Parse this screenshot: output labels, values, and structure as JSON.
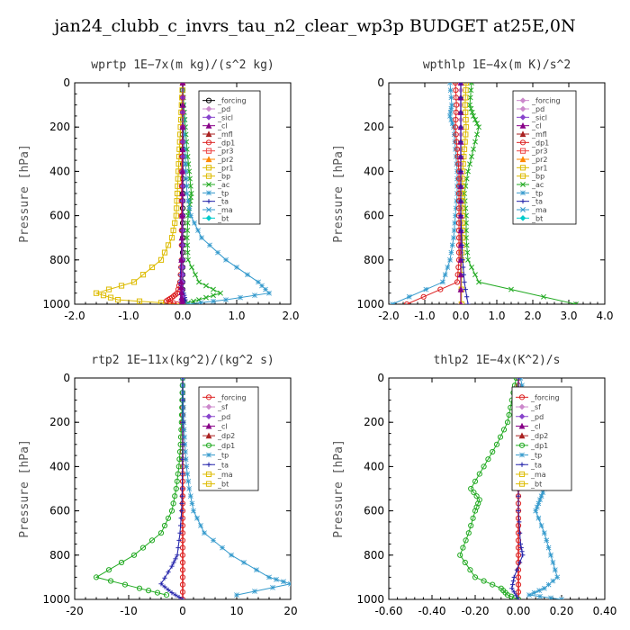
{
  "figure": {
    "title": "jan24_clubb_c_invrs_tau_n2_clear_wp3p  BUDGET at25E,0N"
  },
  "chart_data": [
    {
      "type": "line",
      "title": "wprtp   1E−7x(m kg)/(s^2 kg)",
      "ylabel": "Pressure [hPa]",
      "xlim": [
        -2.0,
        2.0
      ],
      "xticks": [
        "-2.0",
        "-1.0",
        "0.0",
        "1.0",
        "2.0"
      ],
      "ylim": [
        1000,
        0
      ],
      "yticks": [
        "0",
        "200",
        "400",
        "600",
        "800",
        "1000"
      ],
      "legend_position": "top-right",
      "legend": [
        "_forcing",
        "_pd",
        "_sicl",
        "_cl",
        "_mfl",
        "_dp1",
        "_pr3",
        "_pr2",
        "_pr1",
        "_bp",
        "_ac",
        "_tp",
        "_ta",
        "_ma",
        "_bt"
      ],
      "series": [
        {
          "name": "_forcing",
          "color": "#000000",
          "marker": "circle",
          "x": [
            0,
            0,
            0,
            0,
            0,
            0,
            0,
            0,
            0,
            0,
            0
          ],
          "y": [
            0,
            100,
            200,
            300,
            400,
            500,
            600,
            700,
            800,
            900,
            1000
          ]
        },
        {
          "name": "_ac",
          "color": "#22aa22",
          "marker": "x",
          "x": [
            0,
            0.02,
            0.05,
            0.08,
            0.12,
            0.16,
            0.13,
            0.1,
            0.08,
            0.1,
            0.3,
            0.7,
            0.3,
            0
          ],
          "y": [
            0,
            100,
            200,
            300,
            400,
            500,
            550,
            600,
            700,
            800,
            900,
            950,
            980,
            1000
          ]
        },
        {
          "name": "_tp",
          "color": "#3399cc",
          "marker": "asterisk",
          "x": [
            0,
            0.01,
            0.02,
            0.04,
            0.06,
            0.08,
            0.15,
            0.35,
            0.8,
            1.4,
            1.6,
            0.8,
            0.1
          ],
          "y": [
            0,
            100,
            200,
            300,
            400,
            500,
            600,
            700,
            800,
            900,
            950,
            980,
            1000
          ]
        },
        {
          "name": "_bp",
          "color": "#ddbb00",
          "marker": "square",
          "x": [
            0,
            -0.02,
            -0.04,
            -0.06,
            -0.08,
            -0.1,
            -0.12,
            -0.2,
            -0.4,
            -0.9,
            -1.6,
            -1.2,
            0
          ],
          "y": [
            0,
            100,
            200,
            300,
            400,
            500,
            600,
            700,
            800,
            900,
            950,
            980,
            1000
          ]
        },
        {
          "name": "_dp1",
          "color": "#dd2222",
          "marker": "circle",
          "x": [
            0,
            0,
            -0.02,
            -0.02,
            -0.02,
            -0.05,
            -0.1,
            -0.2,
            -0.3,
            -0.1
          ],
          "y": [
            0,
            200,
            400,
            600,
            800,
            900,
            950,
            970,
            985,
            1000
          ]
        },
        {
          "name": "_ta",
          "color": "#2222aa",
          "marker": "plus",
          "x": [
            0,
            0,
            0,
            -0.01,
            -0.03,
            -0.05,
            0.02,
            0.05,
            0
          ],
          "y": [
            0,
            200,
            400,
            600,
            800,
            900,
            950,
            980,
            1000
          ]
        },
        {
          "name": "_sicl",
          "color": "#8844cc",
          "marker": "diamond",
          "x": [
            0,
            0,
            0,
            0,
            0,
            0,
            0
          ],
          "y": [
            0,
            200,
            400,
            600,
            800,
            900,
            1000
          ]
        },
        {
          "name": "_cl",
          "color": "#880088",
          "marker": "triangle",
          "x": [
            0,
            0,
            -0.01,
            -0.03,
            -0.02,
            0
          ],
          "y": [
            0,
            300,
            600,
            900,
            970,
            1000
          ]
        }
      ]
    },
    {
      "type": "line",
      "title": "wpthlp   1E−4x(m K)/s^2",
      "ylabel": "Pressure [hPa]",
      "xlim": [
        -2.0,
        4.0
      ],
      "xticks": [
        "-2.0",
        "-1.0",
        "0.0",
        "1.0",
        "2.0",
        "3.0",
        "4.0"
      ],
      "ylim": [
        1000,
        0
      ],
      "yticks": [
        "0",
        "200",
        "400",
        "600",
        "800",
        "1000"
      ],
      "legend_position": "top-right",
      "legend": [
        "_forcing",
        "_pd",
        "_sicl",
        "_cl",
        "_mfl",
        "_dp1",
        "_pr3",
        "_pr2",
        "_pr1",
        "_bp",
        "_ac",
        "_tp",
        "_ta",
        "_ma",
        "_bt"
      ],
      "series": [
        {
          "name": "_forcing",
          "color": "#cc88cc",
          "marker": "diamond",
          "x": [
            0,
            0,
            0,
            0,
            0,
            0,
            0,
            0,
            0,
            0
          ],
          "y": [
            0,
            100,
            200,
            300,
            400,
            500,
            600,
            700,
            800,
            1000
          ]
        },
        {
          "name": "_ac",
          "color": "#22aa22",
          "marker": "x",
          "x": [
            0.3,
            0.25,
            0.35,
            0.5,
            0.35,
            0.2,
            0.1,
            0.15,
            0.15,
            0.2,
            0.5,
            3.2
          ],
          "y": [
            0,
            100,
            150,
            200,
            300,
            400,
            500,
            600,
            700,
            800,
            900,
            1000
          ]
        },
        {
          "name": "_tp",
          "color": "#3399cc",
          "marker": "asterisk",
          "x": [
            -0.3,
            -0.25,
            -0.3,
            -0.2,
            -0.15,
            -0.1,
            -0.1,
            -0.15,
            -0.2,
            -0.3,
            -0.5,
            -1.9
          ],
          "y": [
            0,
            100,
            150,
            200,
            300,
            400,
            500,
            600,
            700,
            800,
            900,
            1000
          ]
        },
        {
          "name": "_bp",
          "color": "#ddbb00",
          "marker": "square",
          "x": [
            0.15,
            0.12,
            0.15,
            0.1,
            0.05,
            0.05,
            0.05,
            0.05,
            0.02,
            0.02
          ],
          "y": [
            0,
            100,
            200,
            300,
            400,
            500,
            600,
            700,
            800,
            1000
          ]
        },
        {
          "name": "_dp1",
          "color": "#dd2222",
          "marker": "circle",
          "x": [
            -0.15,
            -0.12,
            -0.15,
            -0.1,
            -0.05,
            -0.05,
            -0.05,
            -0.05,
            -0.05,
            -0.1,
            -1.5
          ],
          "y": [
            0,
            100,
            200,
            300,
            400,
            500,
            600,
            700,
            800,
            900,
            1000
          ]
        },
        {
          "name": "_cl",
          "color": "#880088",
          "marker": "triangle",
          "x": [
            0,
            0,
            0,
            0,
            0,
            0
          ],
          "y": [
            0,
            200,
            400,
            600,
            800,
            1000
          ]
        },
        {
          "name": "_ta",
          "color": "#2222aa",
          "marker": "plus",
          "x": [
            0,
            0,
            0,
            0,
            0.05,
            0.1,
            0.2
          ],
          "y": [
            0,
            200,
            400,
            600,
            800,
            900,
            1000
          ]
        }
      ]
    },
    {
      "type": "line",
      "title": "rtp2   1E−11x(kg^2)/(kg^2 s)",
      "ylabel": "Pressure [hPa]",
      "xlim": [
        -20,
        20
      ],
      "xticks": [
        "-20",
        "-10",
        "0",
        "10",
        "20"
      ],
      "ylim": [
        1000,
        0
      ],
      "yticks": [
        "0",
        "200",
        "400",
        "600",
        "800",
        "1000"
      ],
      "legend_position": "top-right",
      "legend": [
        "_forcing",
        "_sf",
        "_pd",
        "_cl",
        "_dp2",
        "_dp1",
        "_tp",
        "_ta",
        "_ma",
        "_bt"
      ],
      "series": [
        {
          "name": "_forcing",
          "color": "#dd2222",
          "marker": "circle",
          "x": [
            0,
            0,
            0,
            0,
            0,
            0,
            0,
            0,
            0,
            0,
            0
          ],
          "y": [
            0,
            100,
            200,
            300,
            400,
            500,
            600,
            700,
            800,
            900,
            1000
          ]
        },
        {
          "name": "_dp1",
          "color": "#22aa22",
          "marker": "circle",
          "x": [
            0,
            -0.1,
            -0.2,
            -0.4,
            -0.7,
            -1.2,
            -2.0,
            -4.0,
            -9.0,
            -16.0,
            -8.0,
            -3.0
          ],
          "y": [
            0,
            100,
            200,
            300,
            400,
            500,
            600,
            700,
            800,
            900,
            950,
            980
          ]
        },
        {
          "name": "_tp",
          "color": "#3399cc",
          "marker": "asterisk",
          "x": [
            0,
            0.1,
            0.2,
            0.4,
            0.7,
            1.2,
            2.0,
            4.0,
            9.0,
            16.0,
            20.0,
            10.0
          ],
          "y": [
            0,
            100,
            200,
            300,
            400,
            500,
            600,
            700,
            800,
            900,
            930,
            980
          ]
        },
        {
          "name": "_ta",
          "color": "#2222aa",
          "marker": "plus",
          "x": [
            0,
            0,
            -0.1,
            -0.2,
            -0.5,
            -1.0,
            -2.0,
            -4.0,
            -2.0,
            0
          ],
          "y": [
            0,
            300,
            500,
            600,
            700,
            800,
            850,
            930,
            970,
            1000
          ]
        }
      ]
    },
    {
      "type": "line",
      "title": "thlp2   1E−4x(K^2)/s",
      "ylabel": "Pressure [hPa]",
      "xlim": [
        -0.6,
        0.4
      ],
      "xticks": [
        "-0.60",
        "-0.40",
        "-0.20",
        "0.00",
        "0.20",
        "0.40"
      ],
      "ylim": [
        1000,
        0
      ],
      "yticks": [
        "0",
        "200",
        "400",
        "600",
        "800",
        "1000"
      ],
      "legend_position": "top-right",
      "legend": [
        "_forcing",
        "_sf",
        "_pd",
        "_cl",
        "_dp2",
        "_dp1",
        "_tp",
        "_ta",
        "_ma",
        "_bt"
      ],
      "series": [
        {
          "name": "_forcing",
          "color": "#dd2222",
          "marker": "circle",
          "x": [
            0,
            0,
            0,
            0,
            0,
            0,
            0,
            0,
            0,
            0,
            0
          ],
          "y": [
            0,
            100,
            200,
            300,
            400,
            500,
            600,
            700,
            800,
            900,
            1000
          ]
        },
        {
          "name": "_dp1",
          "color": "#22aa22",
          "marker": "circle",
          "x": [
            -0.01,
            -0.03,
            -0.05,
            -0.1,
            -0.16,
            -0.22,
            -0.18,
            -0.2,
            -0.23,
            -0.27,
            -0.2,
            -0.08,
            -0.05,
            0
          ],
          "y": [
            0,
            100,
            200,
            300,
            400,
            500,
            550,
            600,
            700,
            800,
            900,
            950,
            980,
            1000
          ]
        },
        {
          "name": "_tp",
          "color": "#3399cc",
          "marker": "asterisk",
          "x": [
            0.01,
            0.03,
            0.05,
            0.08,
            0.1,
            0.12,
            0.1,
            0.08,
            0.12,
            0.15,
            0.18,
            0.12,
            0.05,
            0.2
          ],
          "y": [
            0,
            100,
            200,
            300,
            400,
            500,
            550,
            600,
            700,
            800,
            900,
            950,
            980,
            1000
          ]
        },
        {
          "name": "_ta",
          "color": "#2222aa",
          "marker": "plus",
          "x": [
            0,
            0,
            0,
            0,
            0.01,
            0.02,
            -0.02,
            -0.03,
            0.0
          ],
          "y": [
            0,
            200,
            400,
            600,
            750,
            800,
            900,
            950,
            1000
          ]
        }
      ]
    }
  ]
}
